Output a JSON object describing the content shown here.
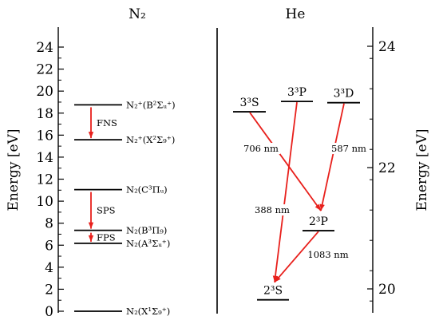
{
  "titles": {
    "left": "N₂",
    "right": "He"
  },
  "left_axis": {
    "label": "Energy [eV]",
    "range": [
      0,
      26
    ],
    "ticks": [
      0,
      2,
      4,
      6,
      8,
      10,
      12,
      14,
      16,
      18,
      20,
      22,
      24
    ],
    "tick_labels": [
      "0",
      "2",
      "4",
      "6",
      "8",
      "10",
      "12",
      "14",
      "16",
      "18",
      "20",
      "22",
      "24"
    ]
  },
  "right_axis": {
    "label": "Energy [eV]",
    "range": [
      19.8,
      24.3
    ],
    "ticks": [
      20,
      22,
      24
    ],
    "tick_labels": [
      "20",
      "22",
      "24"
    ]
  },
  "n2_levels": [
    {
      "id": "N2p-B",
      "energy": 18.75,
      "label": "N₂⁺(B²Σᵤ⁺)"
    },
    {
      "id": "N2p-X",
      "energy": 15.58,
      "label": "N₂⁺(X²Σ₉⁺)"
    },
    {
      "id": "N2-C",
      "energy": 11.05,
      "label": "N₂(C³Πᵤ)"
    },
    {
      "id": "N2-B",
      "energy": 7.35,
      "label": "N₂(B³Π₉)"
    },
    {
      "id": "N2-A",
      "energy": 6.17,
      "label": "N₂(A³Σᵤ⁺)"
    },
    {
      "id": "N2-X",
      "energy": 0.0,
      "label": "N₂(X¹Σ₉⁺)"
    }
  ],
  "n2_transitions": [
    {
      "from": "N2p-B",
      "to": "N2p-X",
      "label": "FNS"
    },
    {
      "from": "N2-C",
      "to": "N2-B",
      "label": "SPS"
    },
    {
      "from": "N2-B",
      "to": "N2-A",
      "label": "FPS"
    }
  ],
  "he_levels": [
    {
      "id": "33S",
      "energy": 22.92,
      "label": "3³S"
    },
    {
      "id": "33P",
      "energy": 23.09,
      "label": "3³P"
    },
    {
      "id": "33D",
      "energy": 23.07,
      "label": "3³D"
    },
    {
      "id": "23P",
      "energy": 20.96,
      "label": "2³P"
    },
    {
      "id": "23S",
      "energy": 19.82,
      "label": "2³S"
    }
  ],
  "he_transitions": [
    {
      "from": "33S",
      "to": "23P",
      "label": "706 nm"
    },
    {
      "from": "33D",
      "to": "23P",
      "label": "587 nm"
    },
    {
      "from": "33P",
      "to": "23S",
      "label": "388 nm"
    },
    {
      "from": "23P",
      "to": "23S",
      "label": "1083 nm"
    }
  ],
  "colors": {
    "arrow": "#e8201c",
    "line": "#000000"
  }
}
